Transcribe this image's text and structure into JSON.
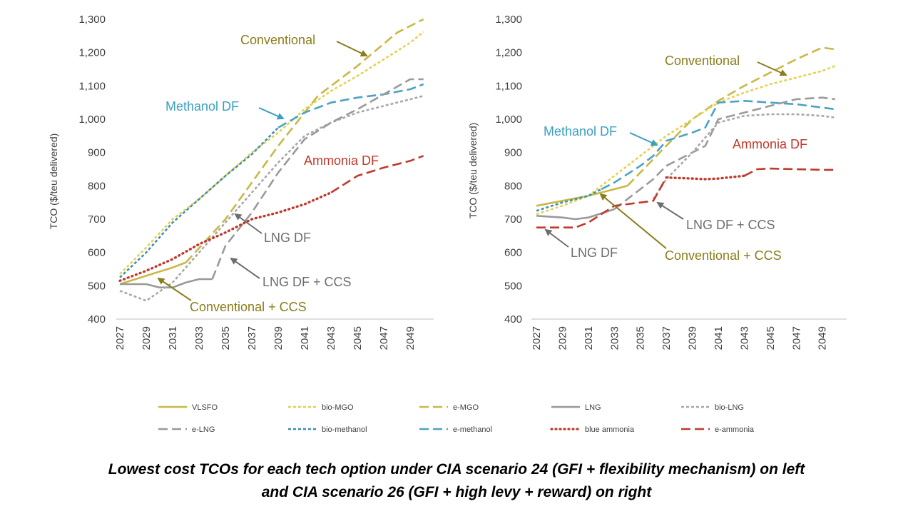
{
  "colors": {
    "VLSFO": "#c9b845",
    "bio-MGO": "#e6d14f",
    "e-MGO": "#c9b845",
    "LNG": "#999999",
    "bio-LNG": "#a8a8a8",
    "e-LNG": "#9a9a9a",
    "bio-methanol": "#3d8fb8",
    "e-methanol": "#4aa3c4",
    "blue ammonia": "#c0392b",
    "e-ammonia": "#c0392b",
    "olive_annotation": "#8a7d1a",
    "teal_annotation": "#3aa0c0",
    "red_annotation": "#c0392b",
    "grey_annotation": "#6e6e6e"
  },
  "caption": {
    "line1": "Lowest cost TCOs for each tech option under CIA scenario 24 (GFI + flexibility mechanism) on left",
    "line2": "and CIA scenario 26 (GFI + high levy + reward) on right"
  },
  "legend": {
    "items": [
      {
        "name": "VLSFO",
        "dash": "solid"
      },
      {
        "name": "bio-MGO",
        "dash": "dot"
      },
      {
        "name": "e-MGO",
        "dash": "longdash"
      },
      {
        "name": "LNG",
        "dash": "solid"
      },
      {
        "name": "bio-LNG",
        "dash": "dot"
      },
      {
        "name": "e-LNG",
        "dash": "longdash"
      },
      {
        "name": "bio-methanol",
        "dash": "dot"
      },
      {
        "name": "e-methanol",
        "dash": "longdash"
      },
      {
        "name": "blue ammonia",
        "dash": "roundDot"
      },
      {
        "name": "e-ammonia",
        "dash": "longdash"
      }
    ]
  },
  "chart_data": [
    {
      "type": "line",
      "ylabel": "TCO ($/teu delivered)",
      "ylim": [
        400,
        1300
      ],
      "yticks": [
        "400",
        "500",
        "600",
        "700",
        "800",
        "900",
        "1,000",
        "1,100",
        "1,200",
        "1,300"
      ],
      "xticks": [
        "2027",
        "2029",
        "2031",
        "2033",
        "2035",
        "2037",
        "2039",
        "2041",
        "2043",
        "2045",
        "2047",
        "2049"
      ],
      "xlim": [
        2027,
        2050.5
      ],
      "series": [
        {
          "name": "VLSFO",
          "x": [
            2027,
            2029,
            2031,
            2032
          ],
          "values": [
            505,
            530,
            555,
            570
          ]
        },
        {
          "name": "e-MGO",
          "x": [
            2032,
            2035,
            2039,
            2042,
            2045,
            2048,
            2050
          ],
          "values": [
            570,
            700,
            920,
            1070,
            1160,
            1260,
            1300
          ]
        },
        {
          "name": "bio-MGO",
          "x": [
            2027,
            2029,
            2031,
            2033,
            2035,
            2037,
            2039,
            2041,
            2043,
            2045,
            2047,
            2049,
            2050
          ],
          "values": [
            535,
            615,
            700,
            760,
            830,
            900,
            960,
            1030,
            1085,
            1130,
            1180,
            1230,
            1262
          ]
        },
        {
          "name": "bio-methanol",
          "x": [
            2027,
            2029,
            2031,
            2033,
            2035,
            2037,
            2039
          ],
          "values": [
            525,
            600,
            690,
            760,
            830,
            895,
            975
          ]
        },
        {
          "name": "e-methanol",
          "x": [
            2039,
            2041,
            2043,
            2045,
            2047,
            2049,
            2050
          ],
          "values": [
            975,
            1020,
            1050,
            1065,
            1075,
            1090,
            1105
          ]
        },
        {
          "name": "LNG",
          "x": [
            2027,
            2029,
            2030,
            2031,
            2032,
            2033,
            2034
          ],
          "values": [
            505,
            505,
            495,
            495,
            510,
            520,
            520
          ]
        },
        {
          "name": "bio-LNG",
          "x": [
            2027,
            2029,
            2031,
            2033,
            2035,
            2037,
            2039,
            2041,
            2043,
            2045,
            2047,
            2049,
            2050
          ],
          "values": [
            485,
            455,
            510,
            600,
            690,
            780,
            870,
            950,
            990,
            1020,
            1040,
            1060,
            1070
          ]
        },
        {
          "name": "e-LNG",
          "x": [
            2034,
            2035,
            2037,
            2039,
            2041,
            2043,
            2045,
            2047,
            2049,
            2050
          ],
          "values": [
            520,
            620,
            720,
            840,
            940,
            990,
            1030,
            1075,
            1120,
            1120
          ]
        },
        {
          "name": "blue ammonia",
          "x": [
            2027,
            2029,
            2031,
            2033,
            2035,
            2037,
            2039,
            2041,
            2043
          ],
          "values": [
            515,
            545,
            580,
            625,
            660,
            700,
            720,
            745,
            780
          ]
        },
        {
          "name": "e-ammonia",
          "x": [
            2043,
            2045,
            2047,
            2049,
            2050
          ],
          "values": [
            780,
            830,
            855,
            875,
            890
          ]
        }
      ],
      "annotations": [
        {
          "text": "Conventional",
          "color": "olive_annotation"
        },
        {
          "text": "Methanol DF",
          "color": "teal_annotation"
        },
        {
          "text": "Ammonia DF",
          "color": "red_annotation"
        },
        {
          "text": "LNG DF",
          "color": "grey_annotation"
        },
        {
          "text": "LNG DF + CCS",
          "color": "grey_annotation"
        },
        {
          "text": "Conventional + CCS",
          "color": "olive_annotation"
        }
      ]
    },
    {
      "type": "line",
      "ylabel": "TCO ($/teu delivered)",
      "ylim": [
        400,
        1300
      ],
      "yticks": [
        "400",
        "500",
        "600",
        "700",
        "800",
        "900",
        "1,000",
        "1,100",
        "1,200",
        "1,300"
      ],
      "xticks": [
        "2027",
        "2029",
        "2031",
        "2033",
        "2035",
        "2037",
        "2039",
        "2041",
        "2043",
        "2045",
        "2047",
        "2049"
      ],
      "xlim": [
        2027,
        2050.5
      ],
      "series": [
        {
          "name": "VLSFO",
          "x": [
            2027,
            2029,
            2031,
            2033,
            2034
          ],
          "values": [
            740,
            755,
            770,
            790,
            800
          ]
        },
        {
          "name": "e-MGO",
          "x": [
            2034,
            2035,
            2037,
            2039,
            2041,
            2043,
            2045,
            2047,
            2049,
            2050
          ],
          "values": [
            800,
            840,
            920,
            1000,
            1055,
            1100,
            1140,
            1180,
            1215,
            1210
          ]
        },
        {
          "name": "bio-MGO",
          "x": [
            2027,
            2029,
            2031,
            2033,
            2035,
            2037,
            2039,
            2041,
            2043,
            2045,
            2047,
            2049,
            2050
          ],
          "values": [
            715,
            740,
            770,
            830,
            890,
            950,
            1000,
            1050,
            1080,
            1105,
            1125,
            1145,
            1160
          ]
        },
        {
          "name": "bio-methanol",
          "x": [
            2027,
            2029,
            2031,
            2032
          ],
          "values": [
            725,
            750,
            770,
            790
          ]
        },
        {
          "name": "e-methanol",
          "x": [
            2032,
            2033,
            2035,
            2036,
            2037,
            2039,
            2040,
            2041,
            2043,
            2045,
            2047,
            2049,
            2050
          ],
          "values": [
            790,
            810,
            860,
            890,
            935,
            960,
            975,
            1050,
            1055,
            1050,
            1045,
            1035,
            1030
          ]
        },
        {
          "name": "LNG",
          "x": [
            2027,
            2029,
            2030,
            2031,
            2033
          ],
          "values": [
            710,
            705,
            700,
            705,
            730
          ]
        },
        {
          "name": "e-LNG",
          "x": [
            2033,
            2035,
            2036,
            2037,
            2039,
            2040,
            2041,
            2043,
            2045,
            2047,
            2049,
            2050
          ],
          "values": [
            730,
            790,
            820,
            860,
            900,
            920,
            1000,
            1020,
            1040,
            1060,
            1065,
            1060
          ]
        },
        {
          "name": "bio-LNG",
          "x": [
            2036,
            2037,
            2039,
            2041,
            2043,
            2045,
            2047,
            2049,
            2050
          ],
          "values": [
            760,
            820,
            900,
            990,
            1010,
            1015,
            1015,
            1010,
            1005
          ]
        },
        {
          "name": "e-ammonia",
          "x": [
            2027,
            2029,
            2030,
            2031,
            2032,
            2033,
            2035,
            2036,
            2037
          ],
          "values": [
            675,
            675,
            675,
            690,
            715,
            740,
            750,
            755,
            825
          ]
        },
        {
          "name": "blue ammonia",
          "x": [
            2037,
            2039,
            2040,
            2041,
            2043
          ],
          "values": [
            825,
            822,
            820,
            822,
            830
          ]
        },
        {
          "name": "e-ammonia",
          "x": [
            2043,
            2044,
            2045,
            2047,
            2049,
            2050
          ],
          "values": [
            830,
            850,
            852,
            850,
            848,
            848
          ]
        }
      ],
      "annotations": [
        {
          "text": "Conventional",
          "color": "olive_annotation"
        },
        {
          "text": "Methanol DF",
          "color": "teal_annotation"
        },
        {
          "text": "Ammonia DF",
          "color": "red_annotation"
        },
        {
          "text": "LNG DF + CCS",
          "color": "grey_annotation"
        },
        {
          "text": "LNG DF",
          "color": "grey_annotation"
        },
        {
          "text": "Conventional + CCS",
          "color": "olive_annotation"
        }
      ]
    }
  ]
}
